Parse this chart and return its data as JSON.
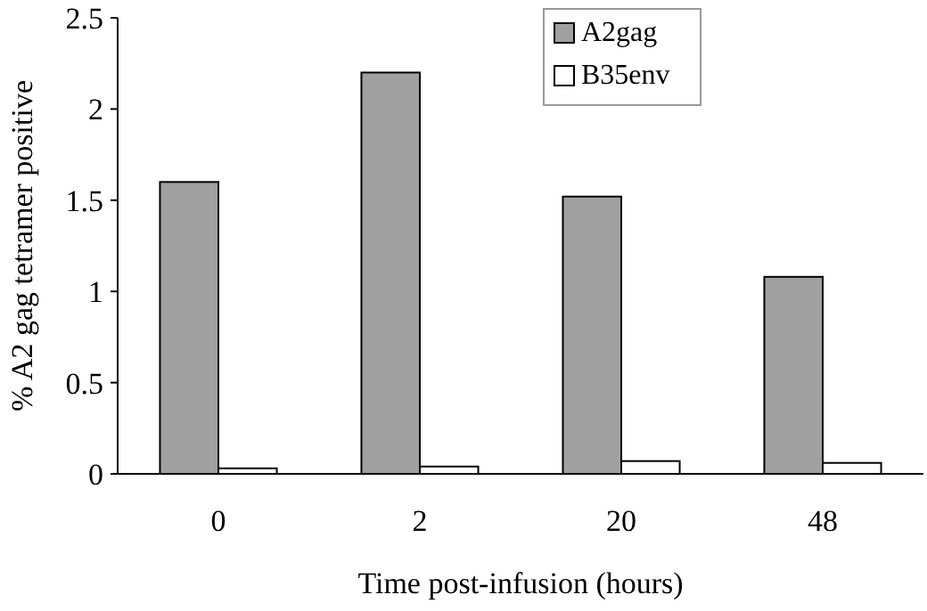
{
  "chart_data": {
    "type": "bar",
    "xlabel": "Time post-infusion (hours)",
    "ylabel": "% A2 gag tetramer positive",
    "categories": [
      "0",
      "2",
      "20",
      "48"
    ],
    "series": [
      {
        "name": "A2gag",
        "color": "#a0a0a0",
        "values": [
          1.6,
          2.2,
          1.52,
          1.08
        ]
      },
      {
        "name": "B35env",
        "color": "#ffffff",
        "values": [
          0.03,
          0.04,
          0.07,
          0.06
        ]
      }
    ],
    "ylim": [
      0,
      2.5
    ],
    "yticks": [
      0,
      0.5,
      1,
      1.5,
      2,
      2.5
    ],
    "grid": false,
    "legend": "top right"
  }
}
